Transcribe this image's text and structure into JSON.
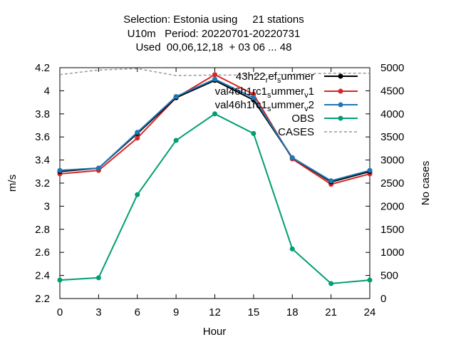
{
  "chart_data": {
    "type": "line",
    "title_lines": [
      "Selection: Estonia using     21 stations",
      "U10m   Period: 20220701-20220731",
      "Used  00,06,12,18  + 03 06 ... 48"
    ],
    "xlabel": "Hour",
    "ylabel": "m/s",
    "y2label": "No cases",
    "xlim": [
      0,
      24
    ],
    "ylim": [
      2.2,
      4.2
    ],
    "y2lim": [
      0,
      5000
    ],
    "x_ticks": [
      0,
      3,
      6,
      9,
      12,
      15,
      18,
      21,
      24
    ],
    "y_ticks": [
      "2.2",
      "2.4",
      "2.6",
      "2.8",
      "3",
      "3.2",
      "3.4",
      "3.6",
      "3.8",
      "4",
      "4.2"
    ],
    "y2_ticks": [
      "0",
      "500",
      "1000",
      "1500",
      "2000",
      "2500",
      "3000",
      "3500",
      "4000",
      "4500",
      "5000"
    ],
    "x": [
      0,
      3,
      6,
      9,
      12,
      15,
      18,
      21,
      24
    ],
    "series": [
      {
        "name": "43h22_ref_summer",
        "legend_main": "43h22",
        "legend_sub1": "r",
        "legend_mid": "ef",
        "legend_sub2": "s",
        "legend_tail": "ummer",
        "color": "#000000",
        "axis": "y",
        "marker": "dot",
        "values": [
          3.3,
          3.33,
          3.63,
          3.94,
          4.09,
          3.92,
          3.42,
          3.21,
          3.3
        ]
      },
      {
        "name": "val46h1rc1_summer_v1",
        "color": "#d62728",
        "axis": "y",
        "marker": "dot",
        "values": [
          3.28,
          3.31,
          3.59,
          3.94,
          4.14,
          3.97,
          3.41,
          3.19,
          3.28
        ]
      },
      {
        "name": "val46h1rc1_summer_v2",
        "color": "#1f77b4",
        "axis": "y",
        "marker": "dot",
        "values": [
          3.31,
          3.33,
          3.64,
          3.95,
          4.1,
          3.94,
          3.42,
          3.22,
          3.31
        ]
      },
      {
        "name": "OBS",
        "color": "#009e73",
        "axis": "y",
        "marker": "dot",
        "values": [
          2.36,
          2.38,
          3.1,
          3.57,
          3.8,
          3.63,
          2.63,
          2.33,
          2.36
        ]
      },
      {
        "name": "CASES",
        "color": "#999999",
        "axis": "y2",
        "marker": "none",
        "dashed": true,
        "values": [
          4850,
          4950,
          4980,
          4830,
          4840,
          4840,
          4860,
          4880,
          4880
        ]
      }
    ],
    "legend_entries": [
      {
        "main": "43h22",
        "sub1": "r",
        "mid": "ef",
        "sub2": "s",
        "tail": "ummer",
        "sub3": "",
        "tail2": ""
      },
      {
        "main": "val46h1rc1",
        "sub1": "s",
        "mid": "ummer",
        "sub2": "v",
        "tail": "1",
        "sub3": "",
        "tail2": ""
      },
      {
        "main": "val46h1rc1",
        "sub1": "s",
        "mid": "ummer",
        "sub2": "v",
        "tail": "2",
        "sub3": "",
        "tail2": ""
      },
      {
        "main": "OBS",
        "sub1": "",
        "mid": "",
        "sub2": "",
        "tail": "",
        "sub3": "",
        "tail2": ""
      },
      {
        "main": "CASES",
        "sub1": "",
        "mid": "",
        "sub2": "",
        "tail": "",
        "sub3": "",
        "tail2": ""
      }
    ],
    "legend_position": "top-right",
    "grid": false
  }
}
